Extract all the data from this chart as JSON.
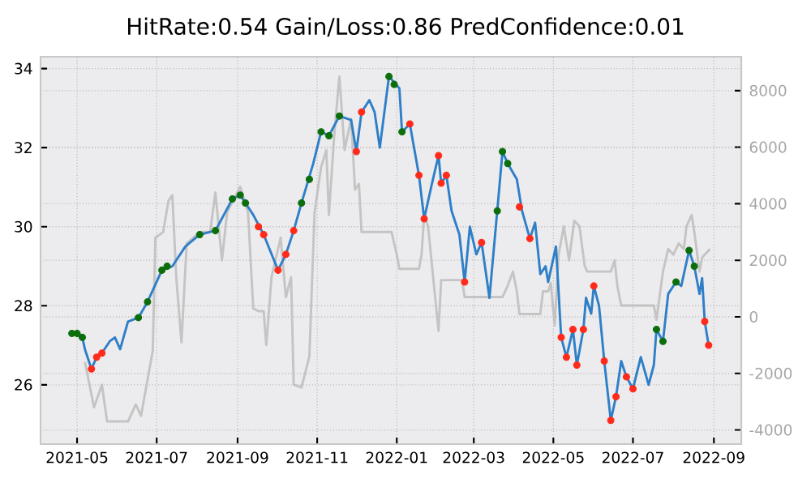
{
  "chart_data": {
    "type": "line",
    "title": "HitRate:0.54 Gain/Loss:0.86 PredConfidence:0.01",
    "xlim": [
      "2021-04-03",
      "2022-09-22"
    ],
    "ylim": [
      24.5,
      34.3
    ],
    "y2lim": [
      -4500,
      9200
    ],
    "xticks": [
      "2021-05",
      "2021-07",
      "2021-09",
      "2021-11",
      "2022-01",
      "2022-03",
      "2022-05",
      "2022-07",
      "2022-09"
    ],
    "yticks": [
      26,
      28,
      30,
      32,
      34
    ],
    "y2ticks": [
      -4000,
      -2000,
      0,
      2000,
      4000,
      6000,
      8000
    ],
    "grid": true,
    "series": [
      {
        "axis": "y2",
        "color": "#c4c4c4",
        "x": [
          "2021-05-07",
          "2021-05-14",
          "2021-05-20",
          "2021-05-24",
          "2021-06-09",
          "2021-06-15",
          "2021-06-19",
          "2021-06-28",
          "2021-06-30",
          "2021-07-06",
          "2021-07-10",
          "2021-07-13",
          "2021-07-16",
          "2021-07-20",
          "2021-07-24",
          "2021-08-03",
          "2021-08-11",
          "2021-08-15",
          "2021-08-20",
          "2021-08-24",
          "2021-09-03",
          "2021-09-09",
          "2021-09-13",
          "2021-09-17",
          "2021-09-21",
          "2021-09-23",
          "2021-09-27",
          "2021-10-04",
          "2021-10-08",
          "2021-10-12",
          "2021-10-14",
          "2021-10-20",
          "2021-10-26",
          "2021-10-30",
          "2021-11-04",
          "2021-11-08",
          "2021-11-10",
          "2021-11-14",
          "2021-11-18",
          "2021-11-22",
          "2021-11-27",
          "2021-11-30",
          "2021-12-03",
          "2021-12-05",
          "2021-12-28",
          "2022-01-01",
          "2022-01-03",
          "2022-01-18",
          "2022-01-20",
          "2022-01-22",
          "2022-01-25",
          "2022-01-28",
          "2022-02-02",
          "2022-02-04",
          "2022-02-20",
          "2022-02-22",
          "2022-03-23",
          "2022-03-27",
          "2022-03-31",
          "2022-04-03",
          "2022-04-05",
          "2022-04-17",
          "2022-04-21",
          "2022-04-23",
          "2022-04-27",
          "2022-04-29",
          "2022-05-02",
          "2022-05-05",
          "2022-05-09",
          "2022-05-13",
          "2022-05-17",
          "2022-05-21",
          "2022-05-25",
          "2022-05-27",
          "2022-06-14",
          "2022-06-17",
          "2022-06-19",
          "2022-06-22",
          "2022-07-17",
          "2022-07-19",
          "2022-07-24",
          "2022-07-28",
          "2022-08-01",
          "2022-08-05",
          "2022-08-09",
          "2022-08-11",
          "2022-08-15",
          "2022-08-17",
          "2022-08-21",
          "2022-08-23",
          "2022-08-27",
          "2022-08-29"
        ],
        "values": [
          -1600,
          -3200,
          -2400,
          -3700,
          -3700,
          -3100,
          -3500,
          -1200,
          2800,
          3000,
          4100,
          4300,
          1400,
          -900,
          2600,
          3000,
          3000,
          4400,
          2000,
          3700,
          4600,
          3700,
          300,
          200,
          200,
          -1000,
          1400,
          2800,
          700,
          1400,
          -2400,
          -2500,
          -1400,
          3700,
          5300,
          5900,
          3600,
          6400,
          8500,
          5900,
          7000,
          4500,
          4700,
          3000,
          3000,
          2200,
          1700,
          1700,
          2200,
          3600,
          3200,
          1800,
          -500,
          1300,
          1300,
          700,
          700,
          1100,
          1600,
          900,
          100,
          100,
          100,
          900,
          900,
          1200,
          -300,
          2200,
          3200,
          2000,
          3400,
          3200,
          1800,
          1600,
          1600,
          2000,
          1100,
          400,
          400,
          -100,
          1600,
          2400,
          2200,
          2600,
          2400,
          3200,
          3600,
          3000,
          1600,
          2100,
          2300,
          2400
        ]
      },
      {
        "color": "#2f7fc8",
        "x": [
          "2021-04-27",
          "2021-05-05",
          "2021-05-07",
          "2021-05-12",
          "2021-05-16",
          "2021-05-20",
          "2021-05-26",
          "2021-05-30",
          "2021-06-03",
          "2021-06-09",
          "2021-06-17",
          "2021-06-24",
          "2021-07-05",
          "2021-07-13",
          "2021-07-23",
          "2021-08-03",
          "2021-08-15",
          "2021-08-28",
          "2021-09-03",
          "2021-09-13",
          "2021-09-21",
          "2021-10-02",
          "2021-10-08",
          "2021-10-14",
          "2021-10-20",
          "2021-10-29",
          "2021-11-04",
          "2021-11-10",
          "2021-11-18",
          "2021-11-27",
          "2021-12-01",
          "2021-12-05",
          "2021-12-11",
          "2021-12-15",
          "2021-12-19",
          "2021-12-26",
          "2022-01-03",
          "2022-01-05",
          "2022-01-11",
          "2022-01-18",
          "2022-01-22",
          "2022-01-28",
          "2022-02-02",
          "2022-02-04",
          "2022-02-08",
          "2022-02-12",
          "2022-02-18",
          "2022-02-22",
          "2022-02-26",
          "2022-03-03",
          "2022-03-07",
          "2022-03-13",
          "2022-03-19",
          "2022-03-23",
          "2022-03-27",
          "2022-04-03",
          "2022-04-07",
          "2022-04-13",
          "2022-04-17",
          "2022-04-21",
          "2022-04-25",
          "2022-04-27",
          "2022-05-03",
          "2022-05-07",
          "2022-05-11",
          "2022-05-16",
          "2022-05-19",
          "2022-05-24",
          "2022-05-26",
          "2022-05-30",
          "2022-06-01",
          "2022-06-05",
          "2022-06-09",
          "2022-06-14",
          "2022-06-18",
          "2022-06-22",
          "2022-06-26",
          "2022-07-01",
          "2022-07-07",
          "2022-07-13",
          "2022-07-17",
          "2022-07-19",
          "2022-07-24",
          "2022-07-28",
          "2022-08-03",
          "2022-08-07",
          "2022-08-13",
          "2022-08-17",
          "2022-08-21",
          "2022-08-23",
          "2022-08-25",
          "2022-08-28"
        ],
        "values": [
          27.3,
          27.2,
          26.9,
          26.4,
          26.7,
          26.8,
          27.1,
          27.2,
          26.9,
          27.6,
          27.7,
          28.1,
          28.9,
          29.0,
          29.5,
          29.8,
          29.9,
          30.7,
          30.8,
          30.3,
          29.8,
          28.9,
          29.3,
          29.9,
          30.6,
          31.6,
          32.4,
          32.3,
          32.8,
          32.7,
          31.9,
          32.9,
          33.2,
          32.9,
          32.0,
          33.8,
          33.5,
          32.4,
          32.6,
          31.3,
          30.2,
          31.1,
          31.8,
          31.1,
          31.3,
          30.4,
          29.8,
          28.6,
          30.0,
          29.3,
          29.6,
          28.2,
          30.4,
          31.9,
          31.6,
          31.2,
          30.4,
          29.7,
          30.1,
          28.8,
          29.0,
          28.6,
          29.5,
          27.2,
          26.7,
          27.4,
          26.5,
          27.4,
          28.2,
          27.8,
          28.5,
          28.0,
          26.6,
          25.1,
          25.7,
          26.6,
          26.2,
          25.9,
          26.7,
          26.0,
          26.5,
          27.4,
          27.1,
          28.3,
          28.6,
          28.5,
          29.4,
          29.0,
          28.3,
          28.7,
          27.6,
          27.0
        ]
      },
      {
        "type": "scatter",
        "marker": "circle",
        "color": "#0b6e0b",
        "x": [
          "2021-04-27",
          "2021-05-01",
          "2021-05-05",
          "2021-06-17",
          "2021-06-24",
          "2021-07-05",
          "2021-07-09",
          "2021-08-03",
          "2021-08-15",
          "2021-08-28",
          "2021-09-03",
          "2021-09-07",
          "2021-10-20",
          "2021-10-26",
          "2021-11-04",
          "2021-11-10",
          "2021-11-18",
          "2021-12-26",
          "2021-12-30",
          "2022-01-05",
          "2022-03-19",
          "2022-03-23",
          "2022-03-27",
          "2022-07-19",
          "2022-07-24",
          "2022-08-03",
          "2022-08-13",
          "2022-08-17"
        ],
        "values": [
          27.3,
          27.3,
          27.2,
          27.7,
          28.1,
          28.9,
          29.0,
          29.8,
          29.9,
          30.7,
          30.8,
          30.6,
          30.6,
          31.2,
          32.4,
          32.3,
          32.8,
          33.8,
          33.6,
          32.4,
          30.4,
          31.9,
          31.6,
          27.4,
          27.1,
          28.6,
          29.4,
          29.0
        ]
      },
      {
        "type": "scatter",
        "marker": "circle",
        "color": "#ff2a1a",
        "x": [
          "2021-05-12",
          "2021-05-16",
          "2021-05-20",
          "2021-09-17",
          "2021-09-21",
          "2021-10-02",
          "2021-10-08",
          "2021-10-14",
          "2021-12-01",
          "2021-12-05",
          "2022-01-11",
          "2022-01-18",
          "2022-01-22",
          "2022-02-02",
          "2022-02-04",
          "2022-02-08",
          "2022-02-22",
          "2022-03-07",
          "2022-04-05",
          "2022-04-13",
          "2022-05-07",
          "2022-05-11",
          "2022-05-16",
          "2022-05-19",
          "2022-05-24",
          "2022-06-01",
          "2022-06-09",
          "2022-06-14",
          "2022-06-18",
          "2022-06-26",
          "2022-07-01",
          "2022-08-25",
          "2022-08-28"
        ],
        "values": [
          26.4,
          26.7,
          26.8,
          30.0,
          29.8,
          28.9,
          29.3,
          29.9,
          31.9,
          32.9,
          32.6,
          31.3,
          30.2,
          31.8,
          31.1,
          31.3,
          28.6,
          29.6,
          30.5,
          29.7,
          27.2,
          26.7,
          27.4,
          26.5,
          27.4,
          28.5,
          26.6,
          25.1,
          25.7,
          26.2,
          25.9,
          27.6,
          27.0
        ]
      }
    ]
  }
}
